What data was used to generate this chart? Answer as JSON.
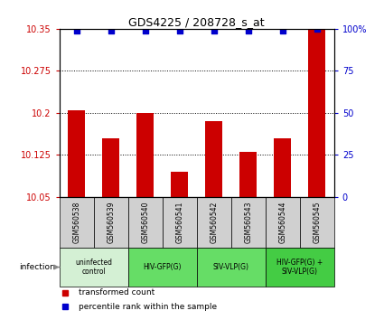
{
  "title": "GDS4225 / 208728_s_at",
  "samples": [
    "GSM560538",
    "GSM560539",
    "GSM560540",
    "GSM560541",
    "GSM560542",
    "GSM560543",
    "GSM560544",
    "GSM560545"
  ],
  "bar_values": [
    10.205,
    10.155,
    10.2,
    10.095,
    10.185,
    10.13,
    10.155,
    10.35
  ],
  "percentile_values": [
    99,
    99,
    99,
    99,
    99,
    99,
    99,
    100
  ],
  "ymin": 10.05,
  "ymax": 10.35,
  "yticks": [
    10.05,
    10.125,
    10.2,
    10.275,
    10.35
  ],
  "ytick_labels": [
    "10.05",
    "10.125",
    "10.2",
    "10.275",
    "10.35"
  ],
  "right_yticks": [
    0,
    25,
    50,
    75,
    100
  ],
  "right_ytick_labels": [
    "0",
    "25",
    "50",
    "75",
    "100%"
  ],
  "bar_color": "#cc0000",
  "dot_color": "#0000cc",
  "dot_size": 25,
  "groups": [
    {
      "label": "uninfected\ncontrol",
      "start": 0,
      "end": 2,
      "color": "#d4f0d4"
    },
    {
      "label": "HIV-GFP(G)",
      "start": 2,
      "end": 4,
      "color": "#66dd66"
    },
    {
      "label": "SIV-VLP(G)",
      "start": 4,
      "end": 6,
      "color": "#66dd66"
    },
    {
      "label": "HIV-GFP(G) +\nSIV-VLP(G)",
      "start": 6,
      "end": 8,
      "color": "#44cc44"
    }
  ],
  "sample_bg_color": "#d0d0d0",
  "legend_red_label": "transformed count",
  "legend_blue_label": "percentile rank within the sample",
  "infection_label": "infection"
}
